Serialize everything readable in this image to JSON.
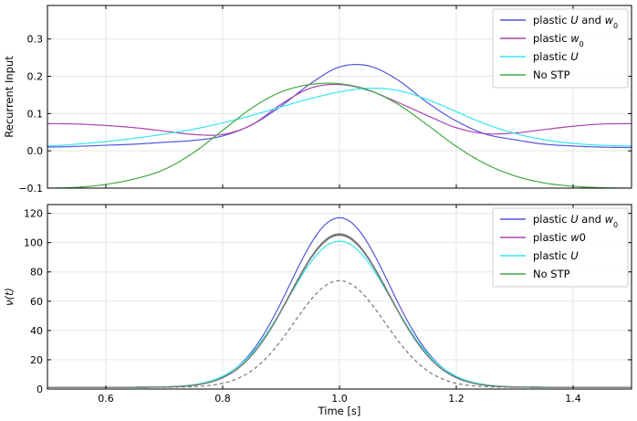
{
  "chart_data": [
    {
      "type": "line",
      "ylabel": "Recurrent Input",
      "xlim": [
        0.5,
        1.5
      ],
      "ylim": [
        -0.1,
        0.39
      ],
      "x_ticks": [
        0.6,
        0.8,
        1.0,
        1.2,
        1.4
      ],
      "y_ticks": [
        -0.1,
        0.0,
        0.1,
        0.2,
        0.3
      ],
      "y_tick_labels": [
        "−0.1",
        "0.0",
        "0.1",
        "0.2",
        "0.3"
      ],
      "grid": true,
      "legend": {
        "placement": "top-right",
        "entries": [
          {
            "label_prefix": "plastic ",
            "label_italic": "U",
            "label_middle": " and ",
            "label_w": "w",
            "label_sub": "0",
            "color": "#5555dd"
          },
          {
            "label_prefix": "plastic ",
            "label_w": "w",
            "label_sub": "0",
            "color": "#aa44aa"
          },
          {
            "label_prefix": "plastic ",
            "label_italic": "U",
            "color": "#33e5f0"
          },
          {
            "label_text": "No STP",
            "color": "#44a844"
          }
        ]
      },
      "x": [
        0.5,
        0.55,
        0.6,
        0.65,
        0.7,
        0.75,
        0.8,
        0.85,
        0.9,
        0.95,
        1.0,
        1.05,
        1.1,
        1.15,
        1.2,
        1.25,
        1.3,
        1.35,
        1.4,
        1.45,
        1.5
      ],
      "series": [
        {
          "name": "plastic U and w0",
          "color": "#5555dd",
          "values": [
            0.01,
            0.012,
            0.015,
            0.018,
            0.023,
            0.028,
            0.04,
            0.07,
            0.12,
            0.18,
            0.225,
            0.228,
            0.19,
            0.13,
            0.08,
            0.045,
            0.03,
            0.018,
            0.013,
            0.01,
            0.009
          ]
        },
        {
          "name": "plastic w0",
          "color": "#aa44aa",
          "values": [
            0.073,
            0.072,
            0.068,
            0.062,
            0.053,
            0.044,
            0.044,
            0.07,
            0.125,
            0.168,
            0.178,
            0.162,
            0.13,
            0.095,
            0.062,
            0.046,
            0.048,
            0.057,
            0.066,
            0.072,
            0.073
          ]
        },
        {
          "name": "plastic U",
          "color": "#33e5f0",
          "values": [
            0.013,
            0.018,
            0.025,
            0.034,
            0.045,
            0.058,
            0.075,
            0.095,
            0.118,
            0.14,
            0.158,
            0.168,
            0.162,
            0.138,
            0.105,
            0.072,
            0.047,
            0.03,
            0.02,
            0.015,
            0.013
          ]
        },
        {
          "name": "No STP",
          "color": "#44a844",
          "values": [
            -0.1,
            -0.098,
            -0.09,
            -0.075,
            -0.05,
            -0.005,
            0.055,
            0.115,
            0.158,
            0.178,
            0.18,
            0.163,
            0.125,
            0.07,
            0.012,
            -0.035,
            -0.067,
            -0.086,
            -0.095,
            -0.099,
            -0.1
          ]
        }
      ]
    },
    {
      "type": "line",
      "xlabel": "Time [s]",
      "ylabel_italic": "ν(t)",
      "xlim": [
        0.5,
        1.5
      ],
      "ylim": [
        0,
        126
      ],
      "x_ticks": [
        0.6,
        0.8,
        1.0,
        1.2,
        1.4
      ],
      "x_tick_labels": [
        "0.6",
        "0.8",
        "1.0",
        "1.2",
        "1.4"
      ],
      "y_ticks": [
        0,
        20,
        40,
        60,
        80,
        100,
        120
      ],
      "y_tick_labels": [
        "0",
        "20",
        "40",
        "60",
        "80",
        "100",
        "120"
      ],
      "grid": true,
      "legend": {
        "placement": "top-right",
        "entries": [
          {
            "label_prefix": "plastic ",
            "label_italic": "U",
            "label_middle": " and ",
            "label_w": "w",
            "label_sub": "0",
            "color": "#5555dd"
          },
          {
            "label_prefix": "plastic ",
            "label_w": "w",
            "label_plain_after": "0",
            "color": "#aa44aa"
          },
          {
            "label_prefix": "plastic ",
            "label_italic": "U",
            "color": "#33e5f0"
          },
          {
            "label_text": "No STP",
            "color": "#44a844"
          }
        ]
      },
      "peak_center": 1.0,
      "baseline": 1.2,
      "series": [
        {
          "name": "plastic U and w0",
          "color": "#5555dd",
          "peak": 117,
          "width": 0.085,
          "dash": false
        },
        {
          "name": "plastic w0",
          "color": "#aa44aa",
          "peak": 106,
          "width": 0.085,
          "dash": false
        },
        {
          "name": "plastic U",
          "color": "#33e5f0",
          "peak": 101,
          "width": 0.088,
          "dash": false
        },
        {
          "name": "No STP",
          "color": "#44a844",
          "peak": 105.5,
          "width": 0.085,
          "dash": false
        },
        {
          "name": "",
          "color": "#777777",
          "peak": 105,
          "width": 0.085,
          "dash": false
        },
        {
          "name": "",
          "color": "#777777",
          "peak": 74,
          "width": 0.078,
          "dash": true
        }
      ]
    }
  ]
}
